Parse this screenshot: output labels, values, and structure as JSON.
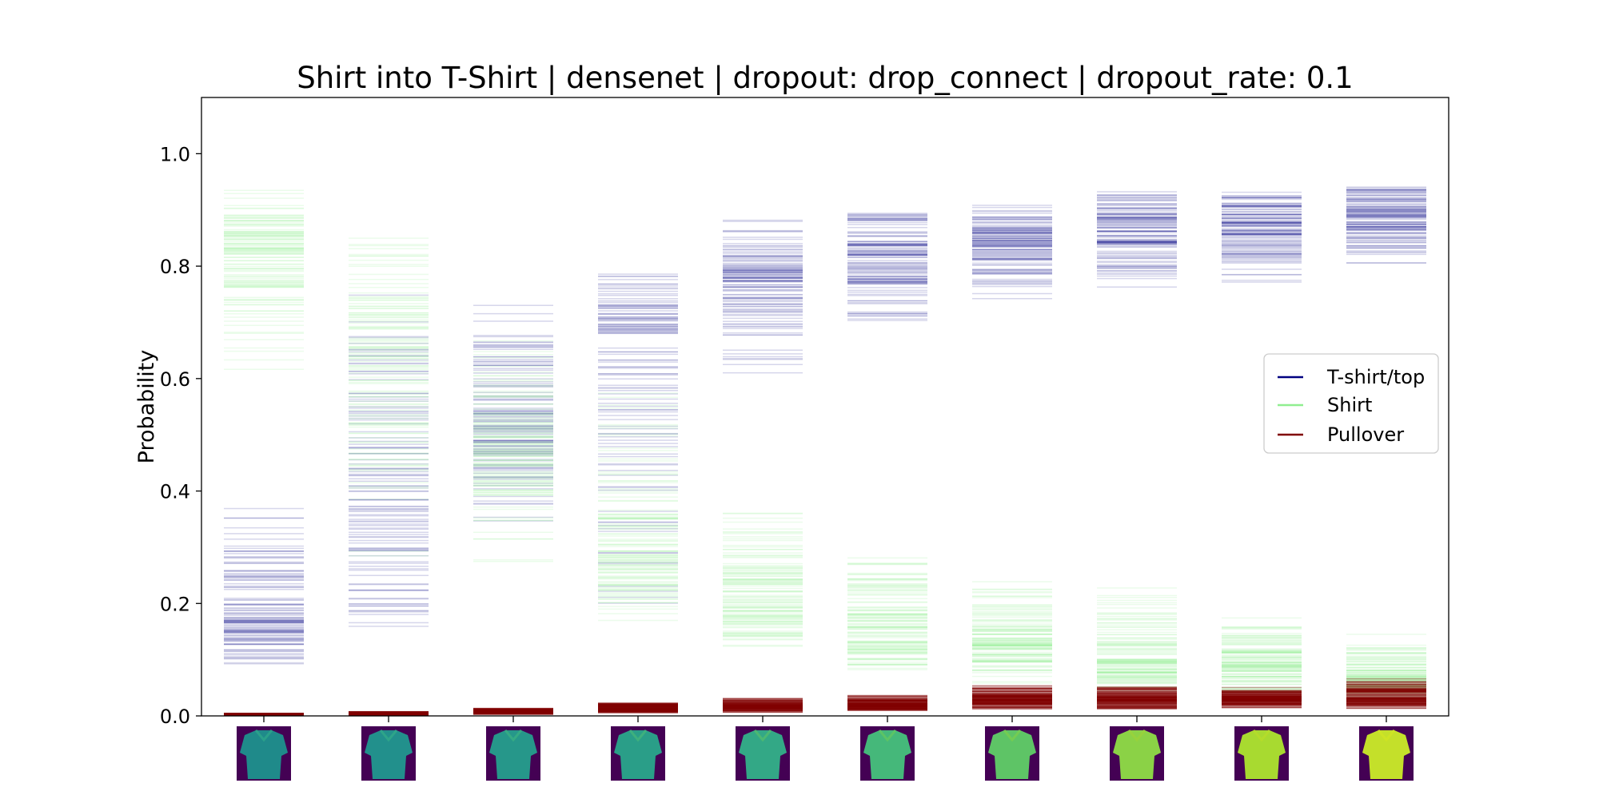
{
  "chart_data": {
    "type": "scatter",
    "title": "Shirt into T-Shirt | densenet | dropout: drop_connect | dropout_rate: 0.1",
    "xlabel": "",
    "ylabel": "Probability",
    "ylim": [
      0.0,
      1.1
    ],
    "yticks": [
      "0.0",
      "0.2",
      "0.4",
      "0.6",
      "0.8",
      "1.0"
    ],
    "grid": false,
    "legend_position": "center-right",
    "steps": 10,
    "series": [
      {
        "name": "T-shirt/top",
        "color": "#000080",
        "ranges": [
          [
            0.07,
            0.4,
            0.17
          ],
          [
            0.13,
            0.8,
            0.37
          ],
          [
            0.31,
            0.74,
            0.52
          ],
          [
            0.16,
            0.82,
            0.68
          ],
          [
            0.6,
            0.89,
            0.77
          ],
          [
            0.69,
            0.91,
            0.82
          ],
          [
            0.74,
            0.92,
            0.84
          ],
          [
            0.75,
            0.94,
            0.87
          ],
          [
            0.76,
            0.94,
            0.87
          ],
          [
            0.8,
            0.95,
            0.89
          ]
        ]
      },
      {
        "name": "Shirt",
        "color": "#90ee90",
        "ranges": [
          [
            0.6,
            0.94,
            0.82
          ],
          [
            0.2,
            0.87,
            0.62
          ],
          [
            0.25,
            0.69,
            0.47
          ],
          [
            0.16,
            0.62,
            0.29
          ],
          [
            0.1,
            0.39,
            0.21
          ],
          [
            0.07,
            0.3,
            0.15
          ],
          [
            0.05,
            0.25,
            0.13
          ],
          [
            0.04,
            0.24,
            0.1
          ],
          [
            0.03,
            0.18,
            0.09
          ],
          [
            0.02,
            0.15,
            0.07
          ]
        ]
      },
      {
        "name": "Pullover",
        "color": "#800000",
        "ranges": [
          [
            0.001,
            0.005,
            0.003
          ],
          [
            0.001,
            0.008,
            0.004
          ],
          [
            0.002,
            0.015,
            0.008
          ],
          [
            0.004,
            0.025,
            0.013
          ],
          [
            0.006,
            0.035,
            0.017
          ],
          [
            0.008,
            0.04,
            0.02
          ],
          [
            0.01,
            0.055,
            0.028
          ],
          [
            0.01,
            0.055,
            0.03
          ],
          [
            0.01,
            0.055,
            0.03
          ],
          [
            0.01,
            0.07,
            0.035
          ]
        ]
      }
    ],
    "thumbnails": [
      {
        "body": "#1f8a8a",
        "collar": "#2aa08a"
      },
      {
        "body": "#22908c",
        "collar": "#2ea489"
      },
      {
        "body": "#26978a",
        "collar": "#35aa84"
      },
      {
        "body": "#2a9e88",
        "collar": "#3eb07d"
      },
      {
        "body": "#33a886",
        "collar": "#4cb872"
      },
      {
        "body": "#45b87a",
        "collar": "#5cc465"
      },
      {
        "body": "#5ec466",
        "collar": "#74cc52"
      },
      {
        "body": "#8bd246",
        "collar": "#98d23c"
      },
      {
        "body": "#a8da30",
        "collar": "#b4dc2a"
      },
      {
        "body": "#c4e02a",
        "collar": "#cee424"
      }
    ]
  }
}
